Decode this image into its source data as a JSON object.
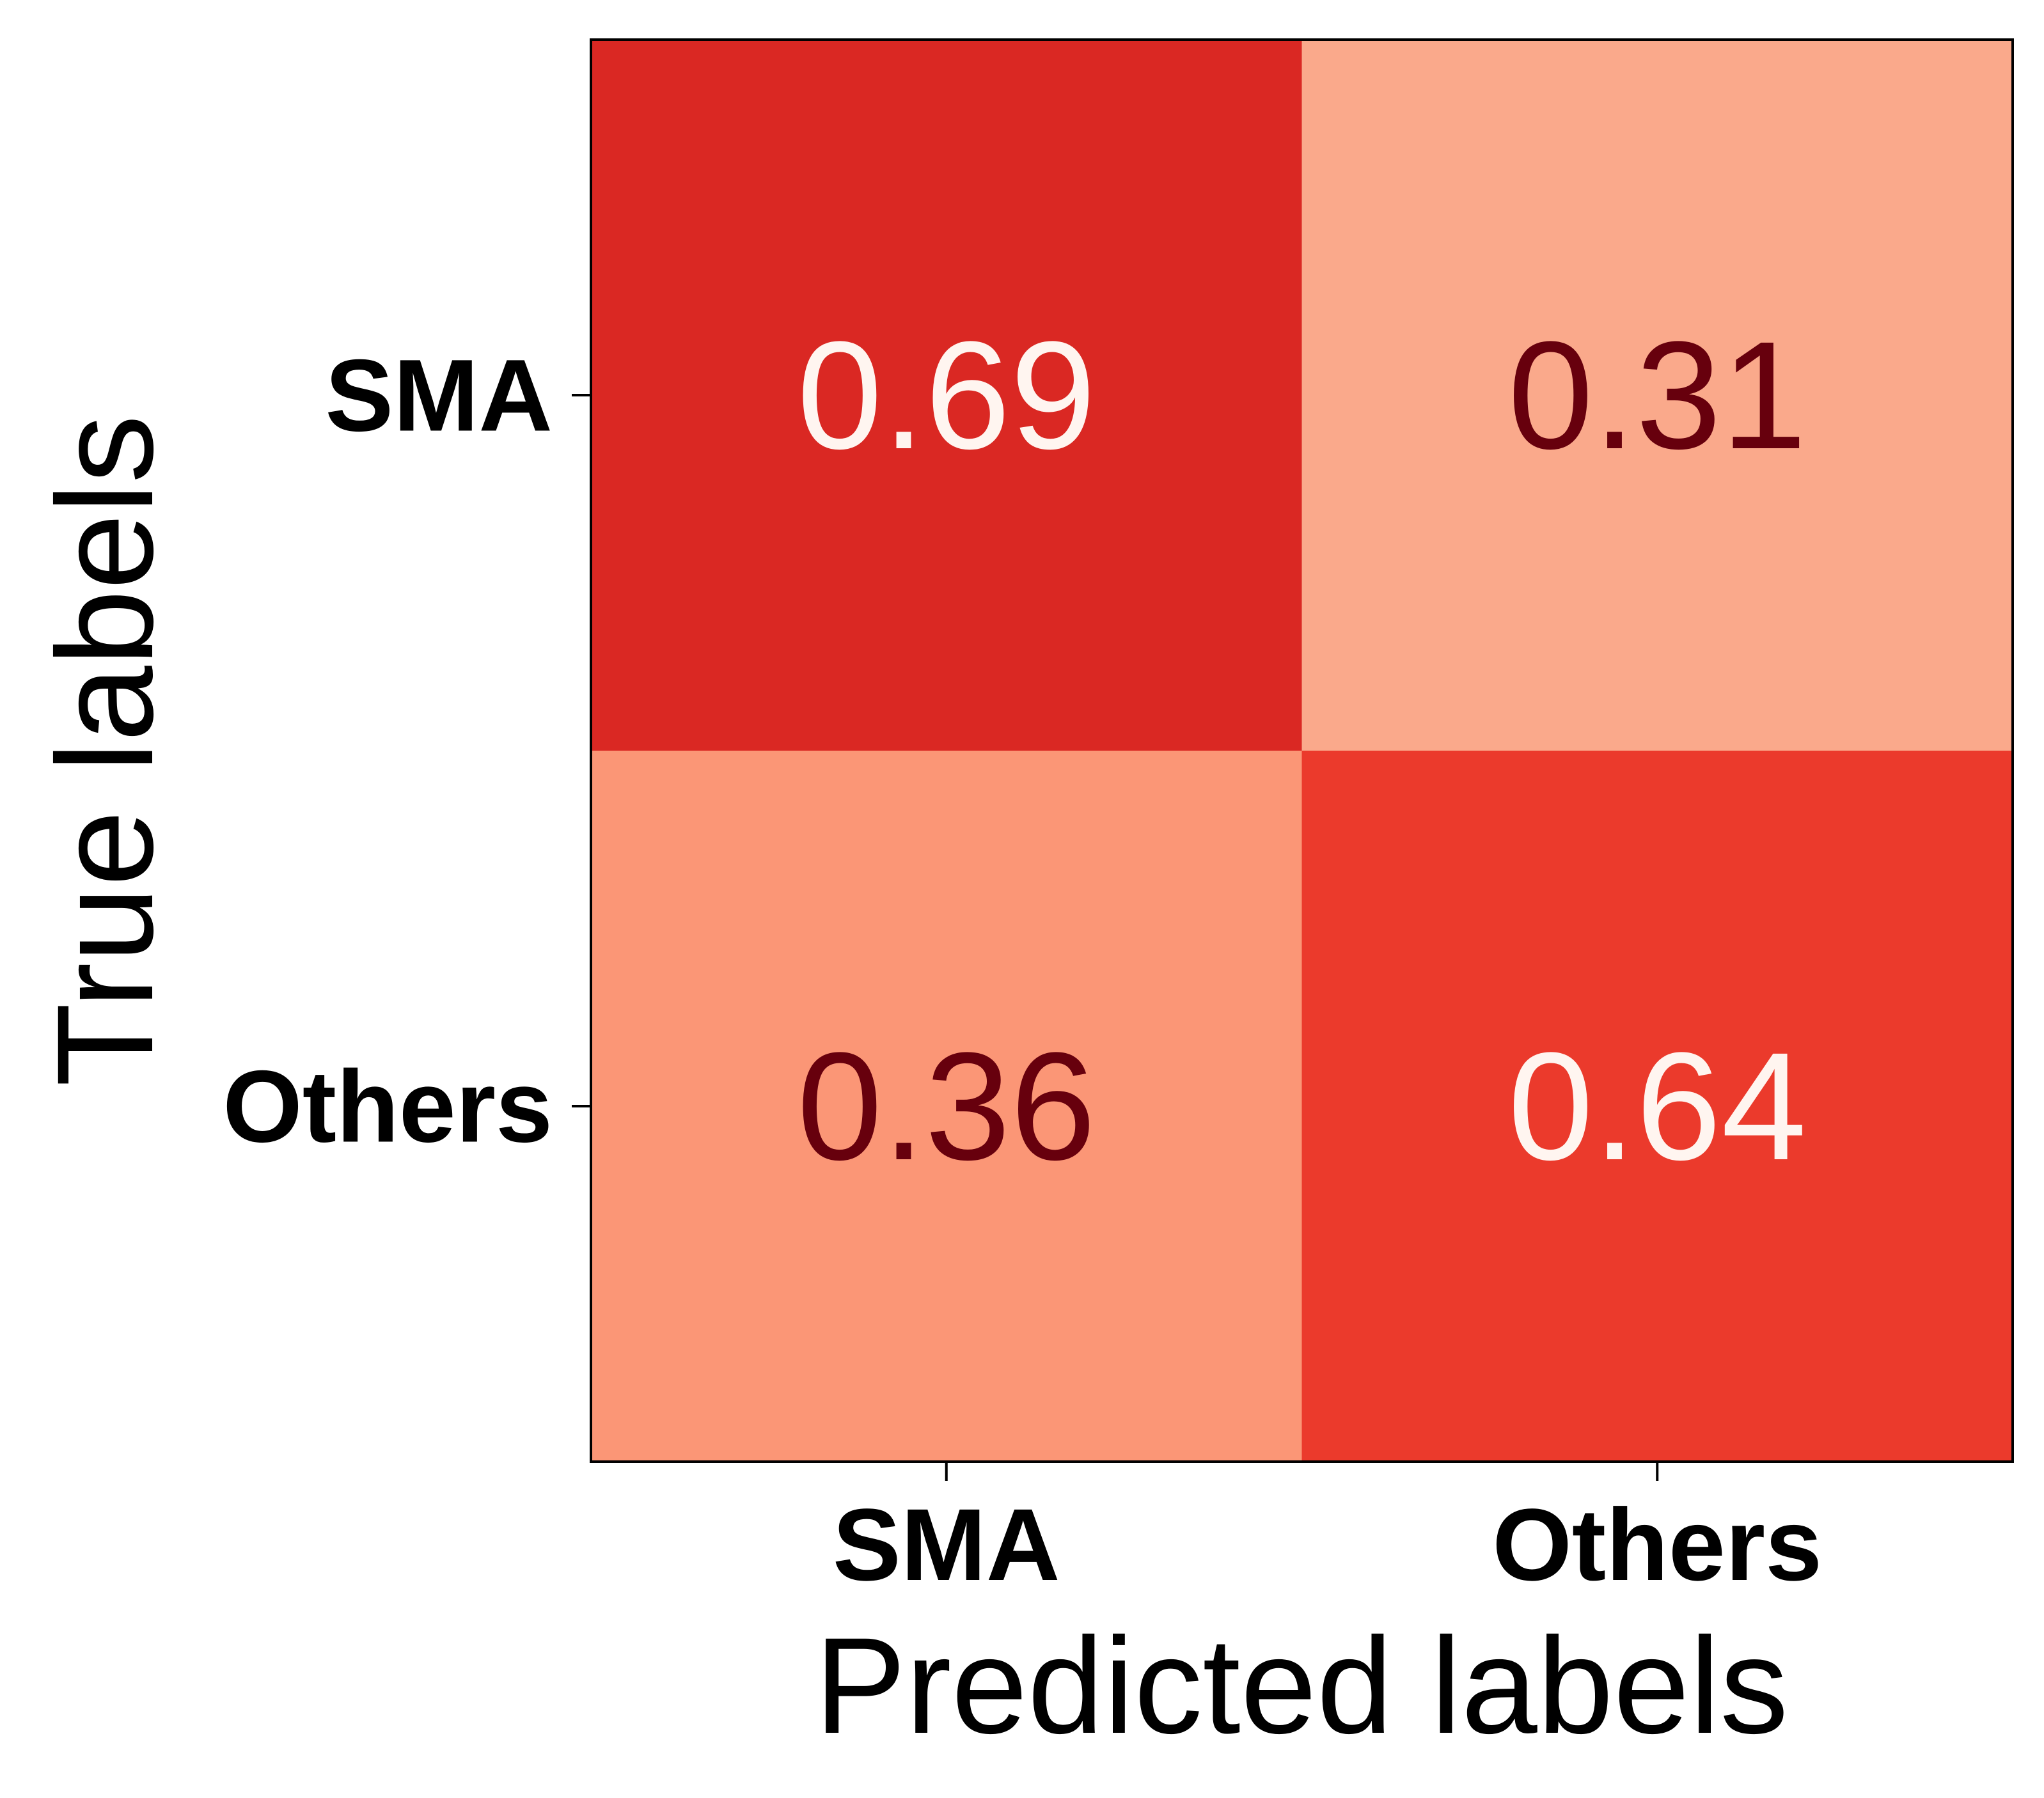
{
  "chart_data": {
    "type": "heatmap",
    "title": "",
    "xlabel": "Predicted labels",
    "ylabel": "True labels",
    "x_categories": [
      "SMA",
      "Others"
    ],
    "y_categories": [
      "SMA",
      "Others"
    ],
    "values": [
      [
        0.69,
        0.31
      ],
      [
        0.36,
        0.64
      ]
    ],
    "cell_labels": [
      [
        "0.69",
        "0.31"
      ],
      [
        "0.36",
        "0.64"
      ]
    ],
    "colormap": "Reds",
    "color_range": [
      0,
      1
    ],
    "cell_colors": [
      [
        "#da2823",
        "#faa98b"
      ],
      [
        "#fb9676",
        "#eb3a2c"
      ]
    ],
    "label_colors": {
      "on_dark": "#fff5f0",
      "on_light": "#67000d"
    },
    "grid": false,
    "legend": "none"
  }
}
